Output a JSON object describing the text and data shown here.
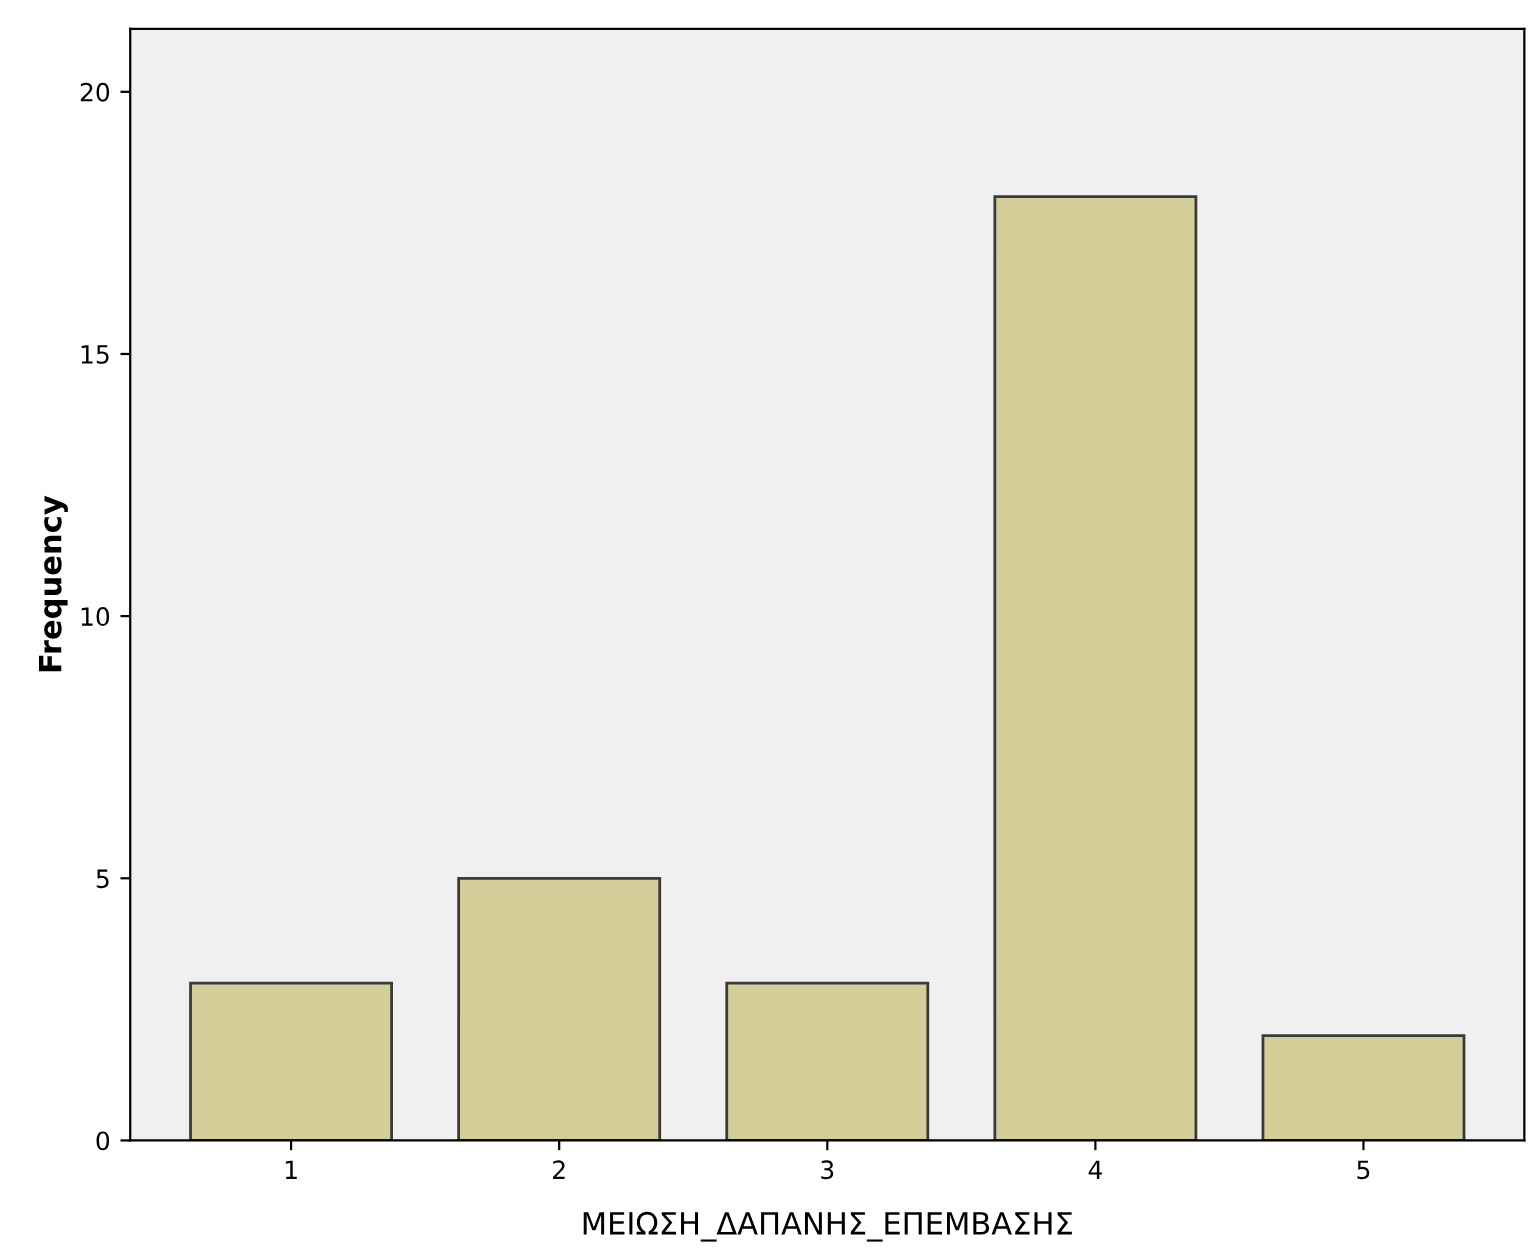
{
  "chart_data": {
    "type": "bar",
    "xlabel": "ΜΕΙΩΣΗ_ΔΑΠΑΝΗΣ_ΕΠΕΜΒΑΣΗΣ",
    "ylabel": "Frequency",
    "categories": [
      "1",
      "2",
      "3",
      "4",
      "5"
    ],
    "values": [
      3,
      5,
      3,
      18,
      2
    ],
    "color": "#d3ce97",
    "ylim": [
      0,
      21.2
    ],
    "yticks": [
      0,
      5,
      10,
      15,
      20
    ],
    "grid": false
  }
}
